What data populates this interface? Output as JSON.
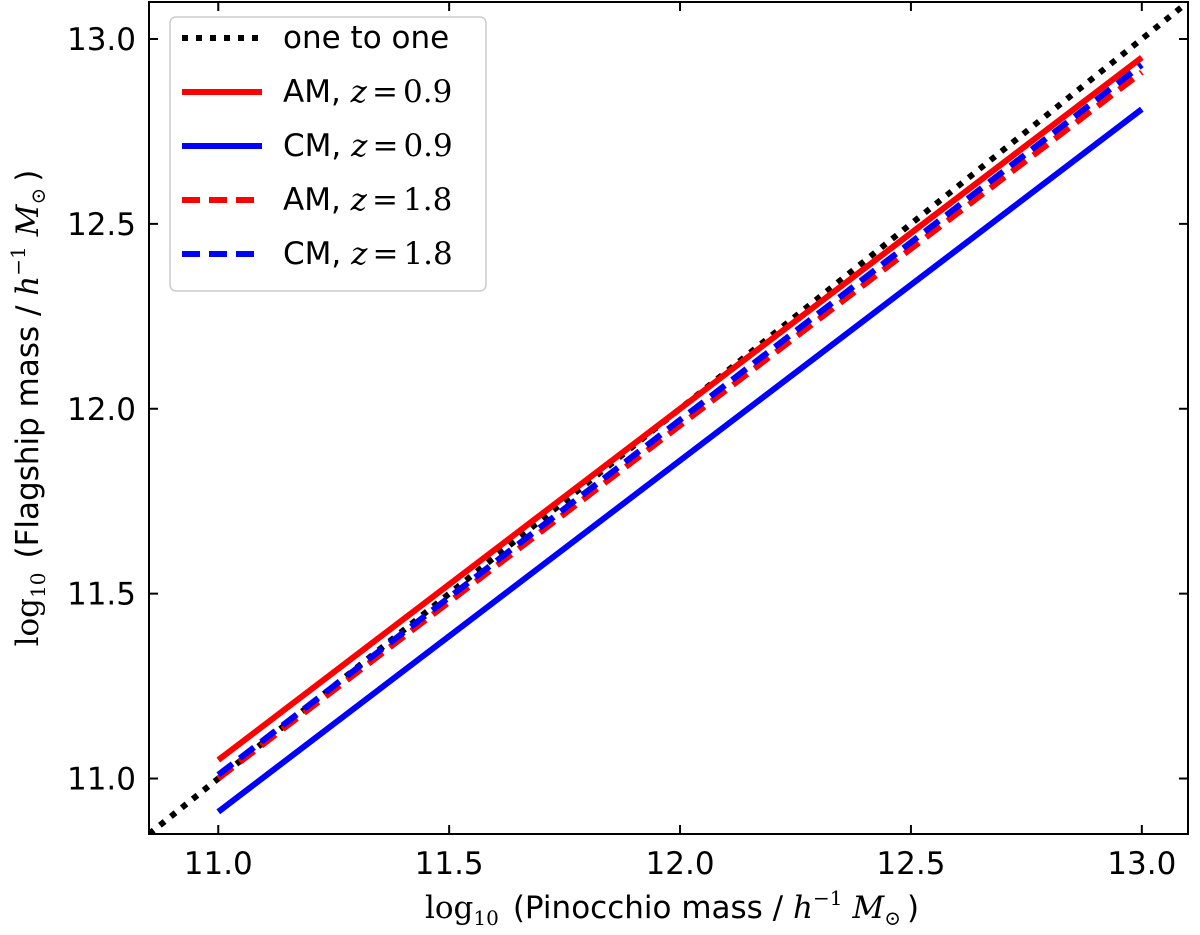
{
  "chart_data": {
    "type": "line",
    "title": "",
    "xlabel": {
      "log": "log",
      "log_sub": "10",
      "text": "(Pinocchio mass / ",
      "h": "h",
      "h_exp": "−1",
      "M": "M",
      "M_sub": "⊙",
      "close": ")"
    },
    "ylabel": {
      "log": "log",
      "log_sub": "10",
      "text": "(Flagship mass / ",
      "h": "h",
      "h_exp": "−1",
      "M": "M",
      "M_sub": "⊙",
      "close": ")"
    },
    "xlim": [
      10.85,
      13.1
    ],
    "ylim": [
      10.85,
      13.1
    ],
    "xticks": [
      "11.0",
      "11.5",
      "12.0",
      "12.5",
      "13.0"
    ],
    "yticks": [
      "11.0",
      "11.5",
      "12.0",
      "12.5",
      "13.0"
    ],
    "legend_position": "top-left",
    "series": [
      {
        "name": "one to one",
        "label_text": "one to one",
        "z": "",
        "color": "#000000",
        "style": "dotted",
        "x": [
          10.85,
          13.1
        ],
        "y": [
          10.85,
          13.1
        ]
      },
      {
        "name": "AM, z=0.9",
        "label_text": "AM, ",
        "z": "0.9",
        "color": "#ff0000",
        "style": "solid",
        "x": [
          11.0,
          13.0
        ],
        "y": [
          11.05,
          12.95
        ]
      },
      {
        "name": "CM, z=0.9",
        "label_text": "CM, ",
        "z": "0.9",
        "color": "#0000ff",
        "style": "solid",
        "x": [
          11.0,
          13.0
        ],
        "y": [
          10.91,
          12.81
        ]
      },
      {
        "name": "AM, z=1.8",
        "label_text": "AM, ",
        "z": "1.8",
        "color": "#ff0000",
        "style": "dashed",
        "x": [
          11.0,
          13.0
        ],
        "y": [
          11.0,
          12.91
        ]
      },
      {
        "name": "CM, z=1.8",
        "label_text": "CM, ",
        "z": "1.8",
        "color": "#0000ff",
        "style": "dashed",
        "x": [
          11.0,
          13.0
        ],
        "y": [
          11.01,
          12.93
        ]
      }
    ]
  }
}
